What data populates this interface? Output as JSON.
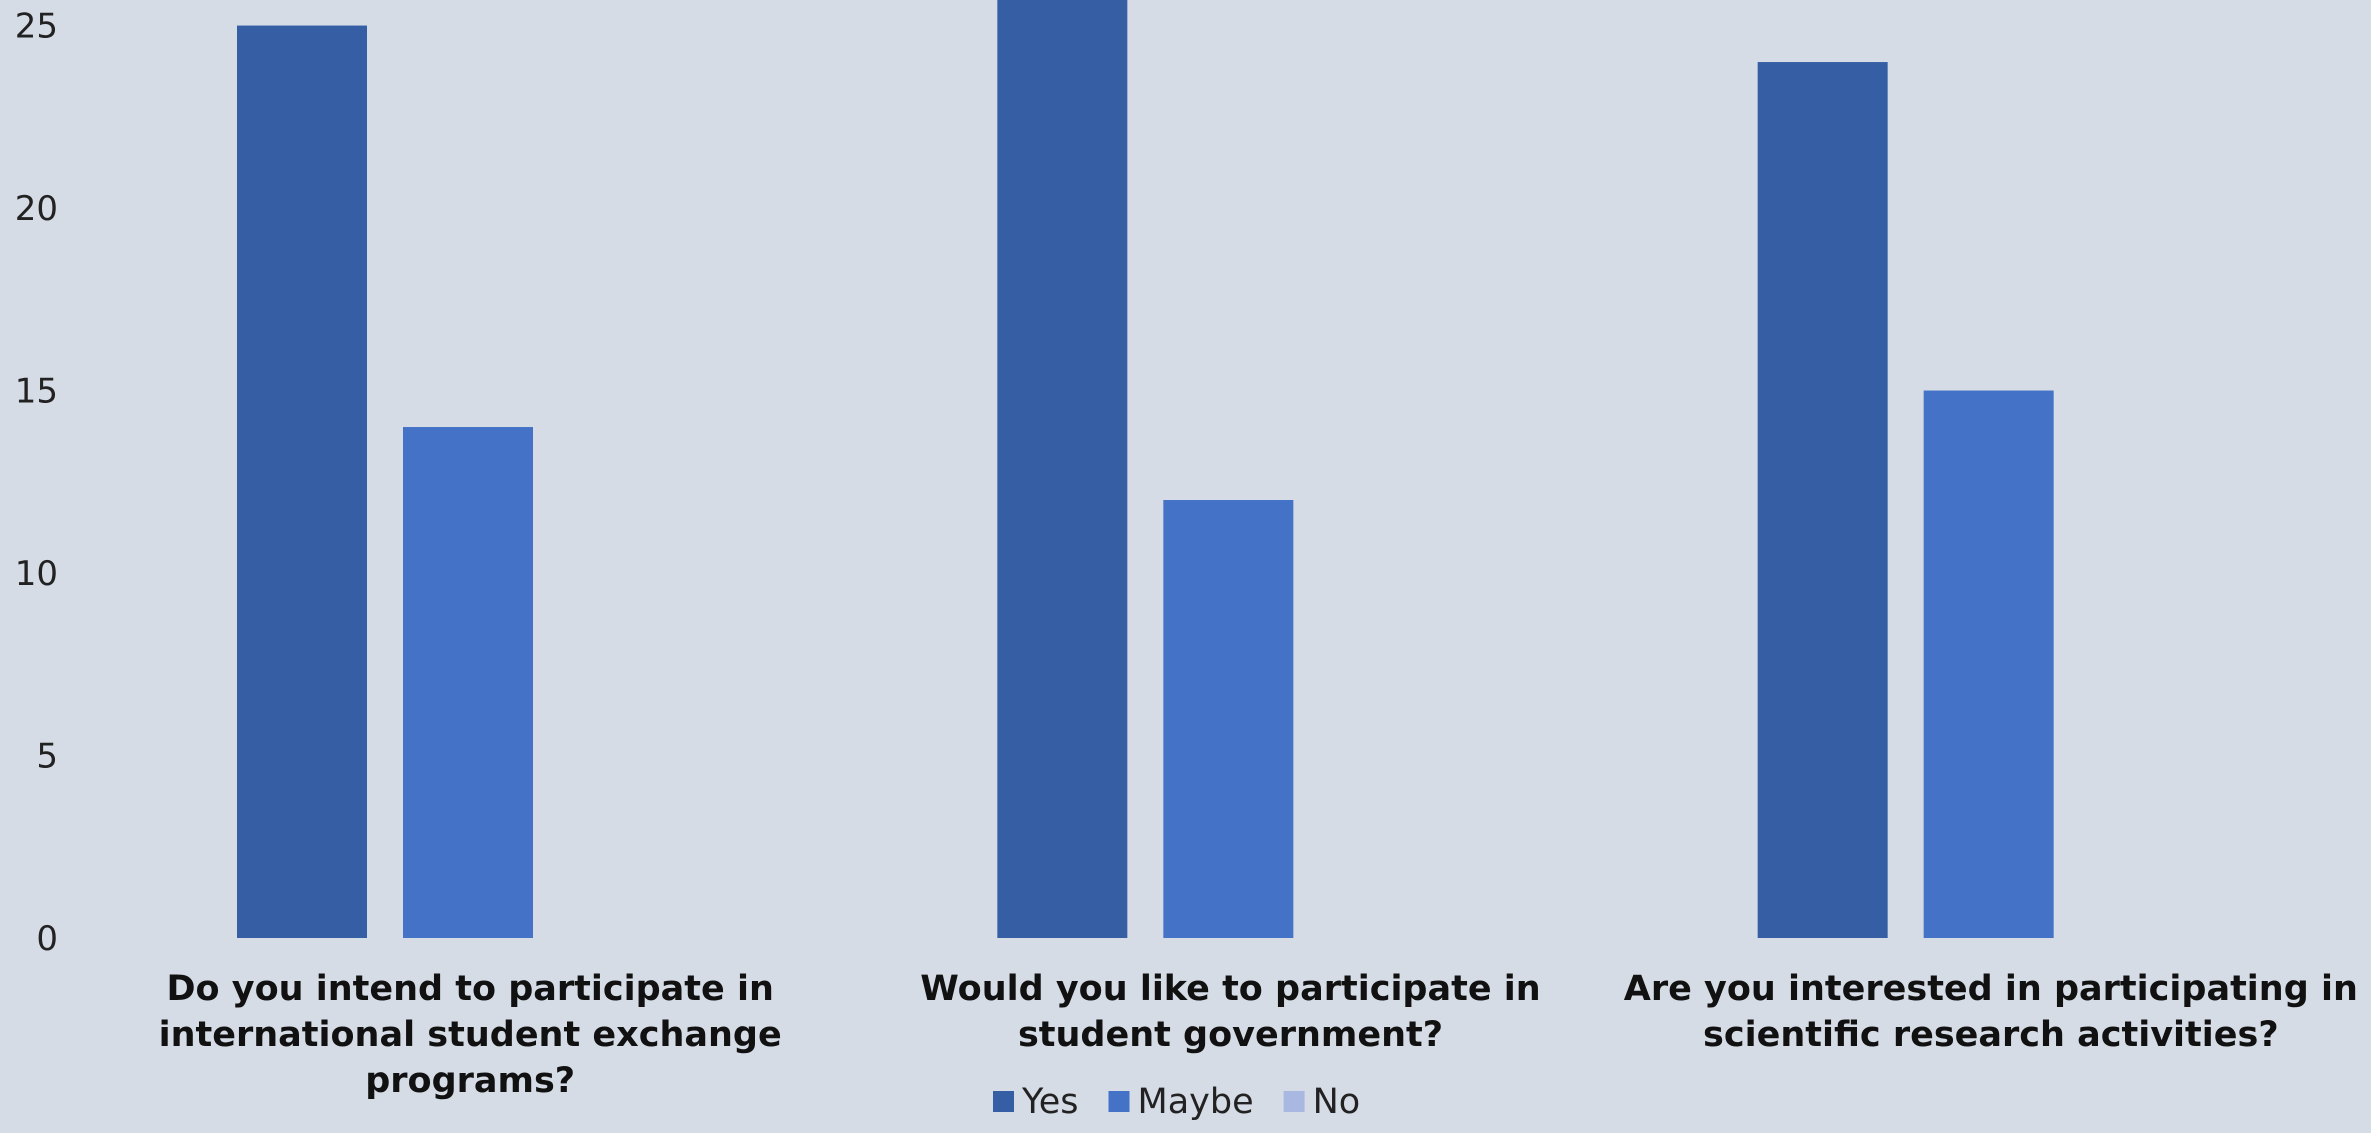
{
  "chart_data": {
    "type": "bar",
    "categories": [
      [
        "Do you intend to participate in",
        "international student exchange",
        "programs?"
      ],
      [
        "Would you like to participate in",
        "student government?"
      ],
      [
        "Are you interested in participating in",
        "scientific research activities?"
      ]
    ],
    "series": [
      {
        "name": "Yes",
        "values": [
          25,
          26,
          24
        ],
        "color": "#355ea5"
      },
      {
        "name": "Maybe",
        "values": [
          14,
          12,
          15
        ],
        "color": "#4472c7"
      },
      {
        "name": "No",
        "values": [
          0,
          0,
          0
        ],
        "color": "#a9b8e0"
      }
    ],
    "yticks": [
      "0",
      "5",
      "10",
      "15",
      "20",
      "25"
    ],
    "ylim": [
      0,
      25.7
    ],
    "grid": false,
    "legend": "bottom",
    "background": "#d6dce6"
  }
}
